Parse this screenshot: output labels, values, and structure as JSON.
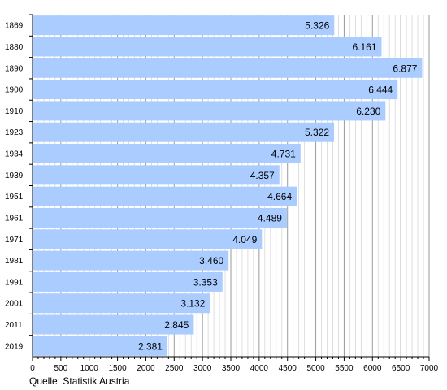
{
  "chart_data": {
    "type": "bar",
    "orientation": "horizontal",
    "categories": [
      "1869",
      "1880",
      "1890",
      "1900",
      "1910",
      "1923",
      "1934",
      "1939",
      "1951",
      "1961",
      "1971",
      "1981",
      "1991",
      "2001",
      "2011",
      "2019"
    ],
    "values": [
      5326,
      6161,
      6877,
      6444,
      6230,
      5322,
      4731,
      4357,
      4664,
      4489,
      4049,
      3460,
      3353,
      3132,
      2845,
      2381
    ],
    "value_labels": [
      "5.326",
      "6.161",
      "6.877",
      "6.444",
      "6.230",
      "5.322",
      "4.731",
      "4.357",
      "4.664",
      "4.489",
      "4.049",
      "3.460",
      "3.353",
      "3.132",
      "2.845",
      "2.381"
    ],
    "x_ticks": [
      0,
      500,
      1000,
      1500,
      2000,
      2500,
      3000,
      3500,
      4000,
      4500,
      5000,
      5500,
      6000,
      6500,
      7000
    ],
    "xlim": [
      0,
      7000
    ],
    "grid": "vertical minor every 100, major every 500",
    "bar_color": "#aaccff",
    "source": "Quelle: Statistik Austria"
  }
}
